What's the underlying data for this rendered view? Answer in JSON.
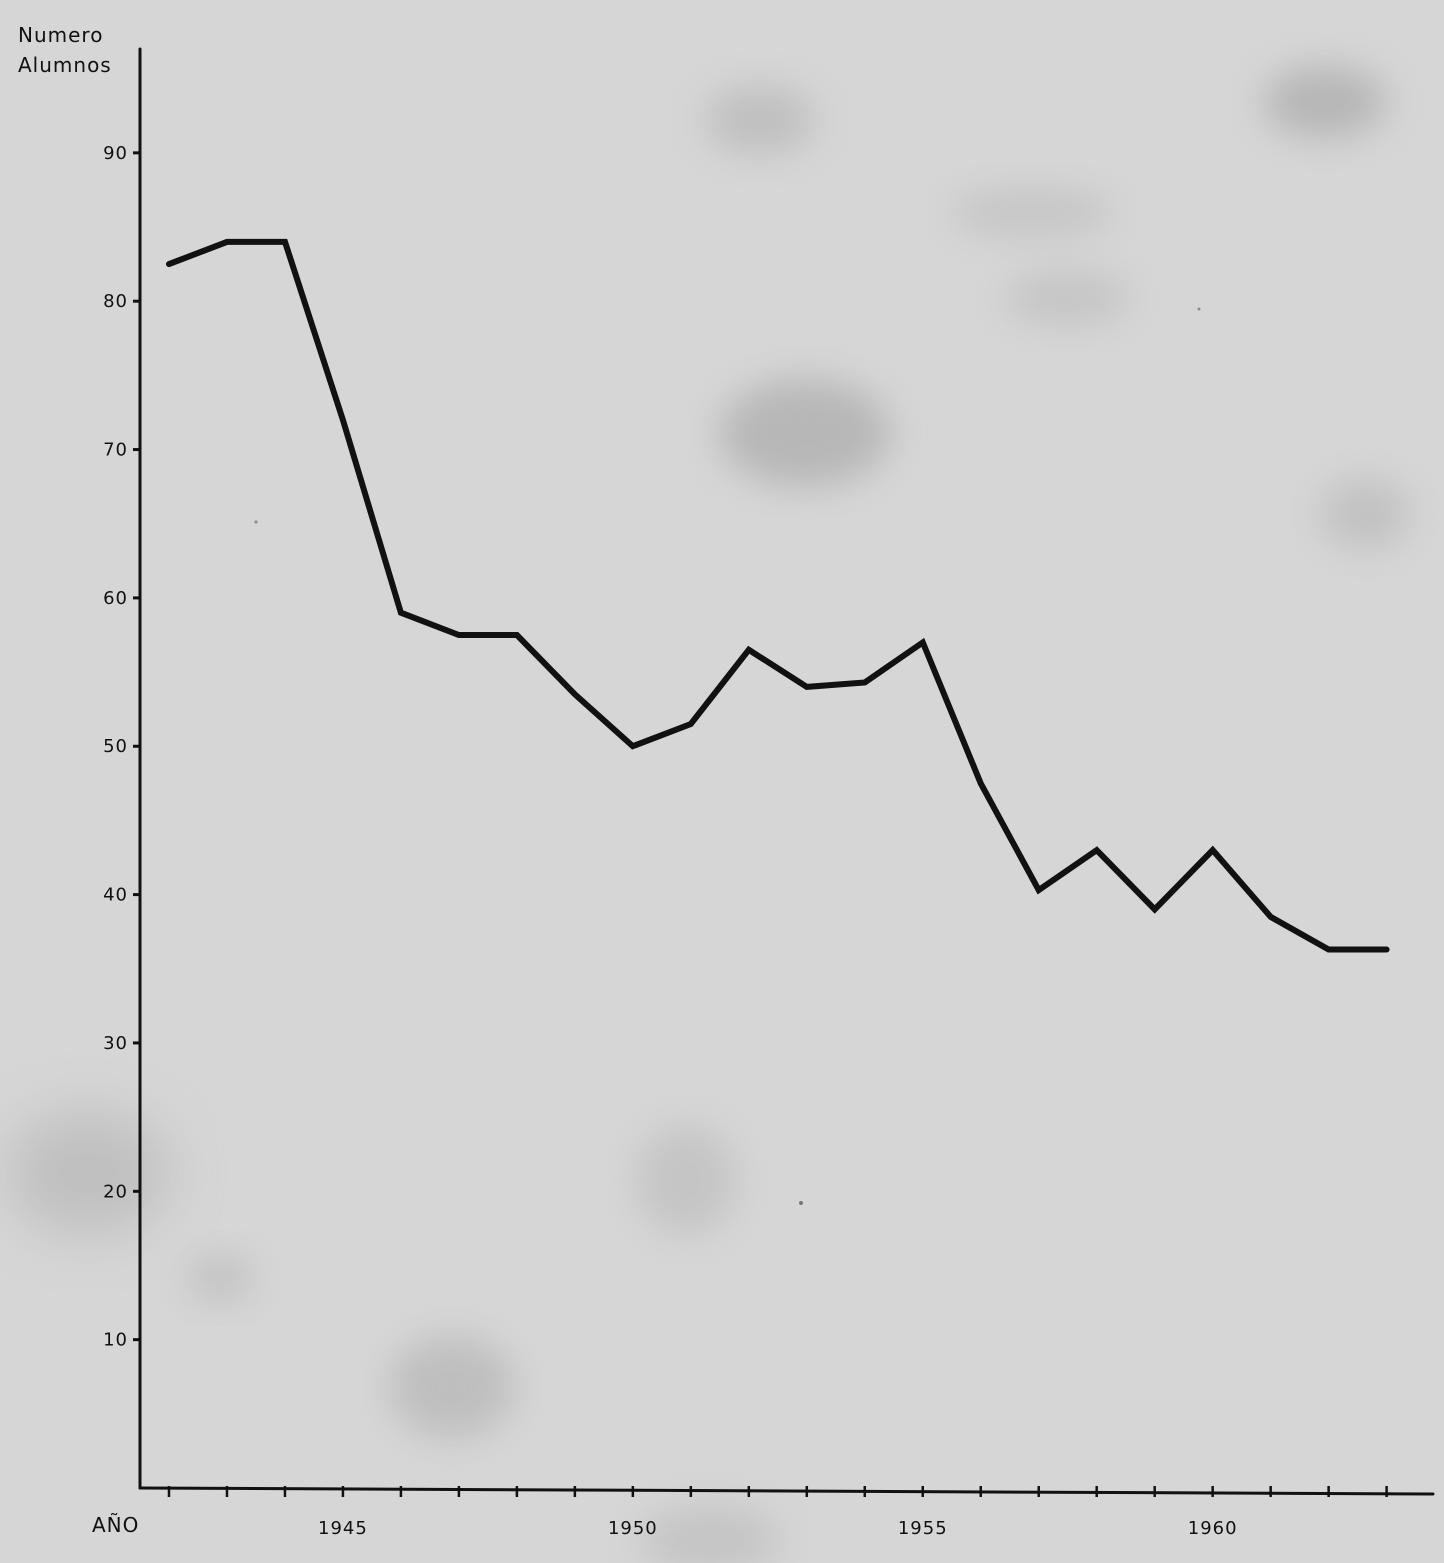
{
  "chart_data": {
    "type": "line",
    "ylabel_lines": [
      "Numero",
      "Alumnos"
    ],
    "xlabel": "AÑO",
    "x_ticks": [
      1945,
      1950,
      1955,
      1960
    ],
    "y_ticks": [
      10,
      20,
      30,
      40,
      50,
      60,
      70,
      80,
      90
    ],
    "xlim": [
      1941.5,
      1963.8
    ],
    "ylim": [
      0,
      97
    ],
    "grid": false,
    "series": [
      {
        "x": [
          1942,
          1943,
          1944,
          1945,
          1946,
          1947,
          1948,
          1949,
          1950,
          1951,
          1952,
          1953,
          1954,
          1955,
          1956,
          1957,
          1958,
          1959,
          1960,
          1961,
          1962,
          1963
        ],
        "y": [
          82.5,
          84,
          84,
          72,
          59,
          57.5,
          57.5,
          53.5,
          50,
          51.5,
          56.5,
          54,
          54.3,
          57,
          47.5,
          40.3,
          43,
          39,
          43,
          38.5,
          36.3,
          36.3
        ]
      }
    ],
    "colors": {
      "paper": "#d6d6d6",
      "ink": "#111111"
    }
  }
}
